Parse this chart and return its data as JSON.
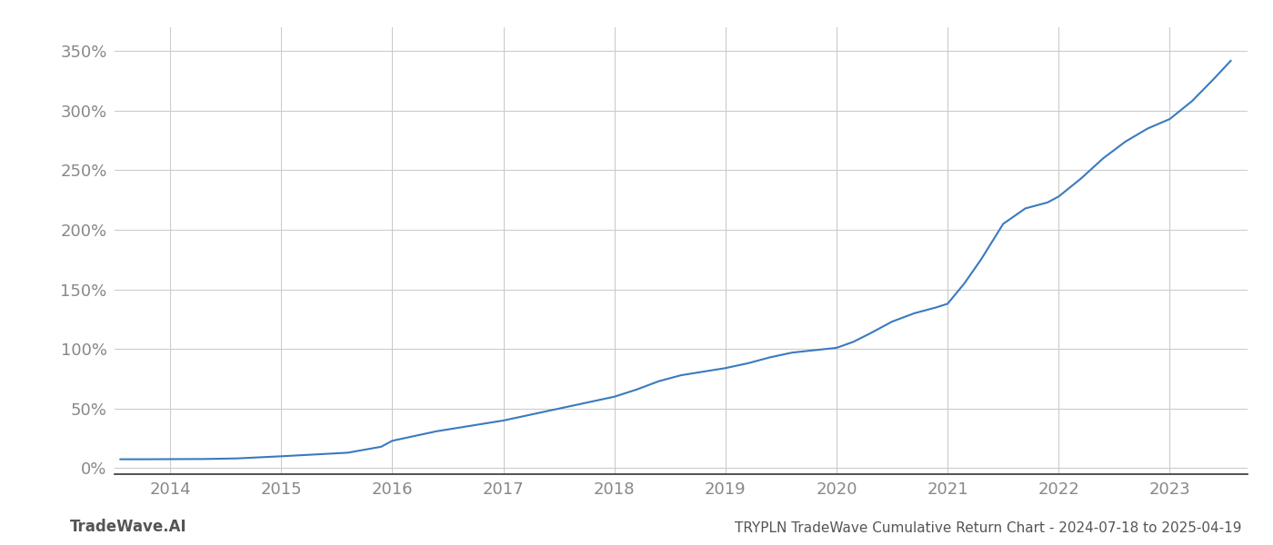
{
  "title_bottom_left": "TradeWave.AI",
  "title_bottom_right": "TRYPLN TradeWave Cumulative Return Chart - 2024-07-18 to 2025-04-19",
  "line_color": "#3a7abf",
  "background_color": "#ffffff",
  "grid_color": "#cccccc",
  "x_tick_color": "#888888",
  "y_tick_color": "#888888",
  "xlim": [
    2013.5,
    2023.7
  ],
  "ylim": [
    -0.05,
    3.7
  ],
  "x_ticks": [
    2014,
    2015,
    2016,
    2017,
    2018,
    2019,
    2020,
    2021,
    2022,
    2023
  ],
  "y_ticks": [
    0.0,
    0.5,
    1.0,
    1.5,
    2.0,
    2.5,
    3.0,
    3.5
  ],
  "y_tick_labels": [
    "0%",
    "50%",
    "100%",
    "150%",
    "200%",
    "250%",
    "300%",
    "350%"
  ],
  "data_x": [
    2013.55,
    2013.8,
    2014.0,
    2014.3,
    2014.6,
    2015.0,
    2015.3,
    2015.6,
    2015.9,
    2016.0,
    2016.2,
    2016.4,
    2016.6,
    2016.8,
    2017.0,
    2017.2,
    2017.4,
    2017.6,
    2017.8,
    2018.0,
    2018.2,
    2018.4,
    2018.6,
    2018.8,
    2019.0,
    2019.2,
    2019.4,
    2019.6,
    2019.8,
    2020.0,
    2020.15,
    2020.3,
    2020.5,
    2020.7,
    2020.9,
    2021.0,
    2021.15,
    2021.3,
    2021.5,
    2021.7,
    2021.9,
    2022.0,
    2022.2,
    2022.4,
    2022.6,
    2022.8,
    2023.0,
    2023.2,
    2023.4,
    2023.55
  ],
  "data_y": [
    0.075,
    0.075,
    0.076,
    0.077,
    0.082,
    0.1,
    0.115,
    0.13,
    0.18,
    0.23,
    0.27,
    0.31,
    0.34,
    0.37,
    0.4,
    0.44,
    0.48,
    0.52,
    0.56,
    0.6,
    0.66,
    0.73,
    0.78,
    0.81,
    0.84,
    0.88,
    0.93,
    0.97,
    0.99,
    1.01,
    1.06,
    1.13,
    1.23,
    1.3,
    1.35,
    1.38,
    1.55,
    1.75,
    2.05,
    2.18,
    2.23,
    2.28,
    2.43,
    2.6,
    2.74,
    2.85,
    2.93,
    3.08,
    3.27,
    3.42
  ]
}
